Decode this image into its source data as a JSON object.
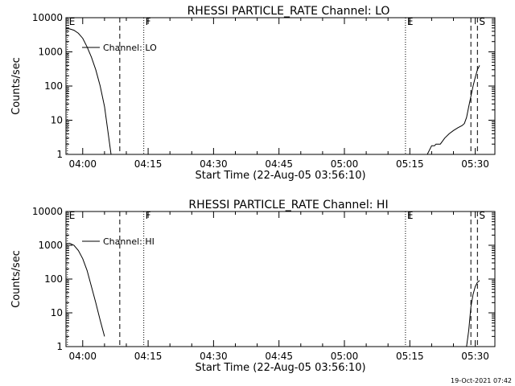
{
  "footer": {
    "timestamp": "19-Oct-2021 07:42"
  },
  "chart_data": [
    {
      "type": "line",
      "title": "RHESSI PARTICLE_RATE Channel: LO",
      "xlabel": "Start Time (22-Aug-05 03:56:10)",
      "ylabel": "Counts/sec",
      "xlim": [
        "03:56:10",
        "05:34:30"
      ],
      "ylim": [
        1,
        10000
      ],
      "yscale": "log",
      "xticks": [
        "04:00",
        "04:15",
        "04:30",
        "04:45",
        "05:00",
        "05:15",
        "05:30"
      ],
      "yticks": [
        "1",
        "10",
        "100",
        "1000",
        "10000"
      ],
      "legend": {
        "label": "Channel: LO",
        "placement": "top-left"
      },
      "markers": [
        {
          "time": "03:56:30",
          "label": "E",
          "style": "dotted"
        },
        {
          "time": "04:08:30",
          "label": "",
          "style": "dashed"
        },
        {
          "time": "04:14:00",
          "label": "F",
          "style": "dotted"
        },
        {
          "time": "05:14:00",
          "label": "E",
          "style": "dotted"
        },
        {
          "time": "05:29:00",
          "label": "",
          "style": "dashed"
        },
        {
          "time": "05:30:30",
          "label": "S",
          "style": "dashed"
        }
      ],
      "series": [
        {
          "name": "Channel: LO",
          "segments": [
            [
              [
                "03:56:10",
                4800
              ],
              [
                "03:57:00",
                4700
              ],
              [
                "03:58:00",
                4300
              ],
              [
                "03:59:00",
                3500
              ],
              [
                "04:00:00",
                2500
              ],
              [
                "04:01:00",
                1400
              ],
              [
                "04:02:00",
                700
              ],
              [
                "04:03:00",
                300
              ],
              [
                "04:04:00",
                100
              ],
              [
                "04:05:00",
                25
              ],
              [
                "04:05:40",
                6
              ],
              [
                "04:06:30",
                1
              ]
            ],
            [
              [
                "05:19:00",
                1
              ],
              [
                "05:20:00",
                1.8
              ],
              [
                "05:20:40",
                1.8
              ],
              [
                "05:21:00",
                2
              ],
              [
                "05:22:00",
                2
              ],
              [
                "05:23:00",
                3
              ],
              [
                "05:24:00",
                4
              ],
              [
                "05:25:00",
                5
              ],
              [
                "05:26:00",
                6
              ],
              [
                "05:27:00",
                7
              ],
              [
                "05:27:30",
                8
              ],
              [
                "05:28:00",
                12
              ],
              [
                "05:28:30",
                25
              ],
              [
                "05:29:00",
                50
              ],
              [
                "05:29:30",
                100
              ],
              [
                "05:30:00",
                180
              ],
              [
                "05:30:30",
                300
              ],
              [
                "05:31:00",
                400
              ]
            ]
          ]
        }
      ]
    },
    {
      "type": "line",
      "title": "RHESSI PARTICLE_RATE Channel: HI",
      "xlabel": "Start Time (22-Aug-05 03:56:10)",
      "ylabel": "Counts/sec",
      "xlim": [
        "03:56:10",
        "05:34:30"
      ],
      "ylim": [
        1,
        10000
      ],
      "yscale": "log",
      "xticks": [
        "04:00",
        "04:15",
        "04:30",
        "04:45",
        "05:00",
        "05:15",
        "05:30"
      ],
      "yticks": [
        "1",
        "10",
        "100",
        "1000",
        "10000"
      ],
      "legend": {
        "label": "Channel: HI",
        "placement": "top-left"
      },
      "markers": [
        {
          "time": "03:56:30",
          "label": "E",
          "style": "dotted"
        },
        {
          "time": "04:08:30",
          "label": "",
          "style": "dashed"
        },
        {
          "time": "04:14:00",
          "label": "F",
          "style": "dotted"
        },
        {
          "time": "05:14:00",
          "label": "E",
          "style": "dotted"
        },
        {
          "time": "05:29:00",
          "label": "",
          "style": "dashed"
        },
        {
          "time": "05:30:30",
          "label": "S",
          "style": "dashed"
        }
      ],
      "series": [
        {
          "name": "Channel: HI",
          "segments": [
            [
              [
                "03:56:10",
                1100
              ],
              [
                "03:57:00",
                1150
              ],
              [
                "03:58:00",
                1000
              ],
              [
                "03:59:00",
                700
              ],
              [
                "04:00:00",
                400
              ],
              [
                "04:01:00",
                180
              ],
              [
                "04:02:00",
                60
              ],
              [
                "04:03:00",
                20
              ],
              [
                "04:04:00",
                6
              ],
              [
                "04:05:00",
                2
              ]
            ],
            [
              [
                "05:28:00",
                1
              ],
              [
                "05:28:30",
                3
              ],
              [
                "05:29:00",
                15
              ],
              [
                "05:29:30",
                35
              ],
              [
                "05:30:00",
                60
              ],
              [
                "05:30:30",
                80
              ],
              [
                "05:31:00",
                90
              ]
            ]
          ]
        }
      ]
    }
  ]
}
